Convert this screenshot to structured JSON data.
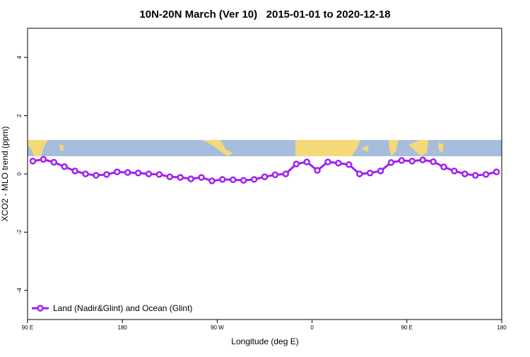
{
  "chart_data": {
    "type": "line",
    "title": "10N-20N March (Ver 10)   2015-01-01 to 2020-12-18",
    "x_label": "Longitude (deg E)",
    "y_label": "XCO2 - MLO trend (ppm)",
    "x": [
      95,
      105,
      115,
      125,
      135,
      145,
      155,
      165,
      175,
      185,
      195,
      205,
      215,
      225,
      235,
      245,
      255,
      265,
      275,
      285,
      295,
      305,
      315,
      325,
      335,
      345,
      355,
      365,
      375,
      385,
      395,
      405,
      415,
      425,
      435,
      445,
      455,
      465,
      475,
      485,
      495,
      505,
      515,
      525,
      535
    ],
    "series": [
      {
        "name": "Land (Nadir&Glint) and Ocean (Glint)",
        "color": "#a020f0",
        "values": [
          0.44,
          0.5,
          0.4,
          0.25,
          0.1,
          0.0,
          -0.05,
          -0.02,
          0.07,
          0.05,
          0.03,
          0.0,
          -0.02,
          -0.1,
          -0.12,
          -0.17,
          -0.12,
          -0.24,
          -0.19,
          -0.2,
          -0.22,
          -0.19,
          -0.1,
          -0.03,
          0.0,
          0.34,
          0.41,
          0.12,
          0.41,
          0.37,
          0.32,
          0.0,
          0.03,
          0.1,
          0.39,
          0.46,
          0.44,
          0.48,
          0.42,
          0.24,
          0.1,
          0.0,
          -0.05,
          -0.02,
          0.07
        ]
      }
    ],
    "xlim": [
      90,
      540
    ],
    "xticks": [
      {
        "value": 90,
        "label": "90 E"
      },
      {
        "value": 180,
        "label": "180"
      },
      {
        "value": 270,
        "label": "90 W"
      },
      {
        "value": 360,
        "label": "0"
      },
      {
        "value": 450,
        "label": "90 E"
      },
      {
        "value": 540,
        "label": "180"
      }
    ],
    "ylim": [
      -5,
      5
    ],
    "yticks": [
      -4,
      -2,
      0,
      2,
      4
    ],
    "legend": "bottom-left"
  }
}
